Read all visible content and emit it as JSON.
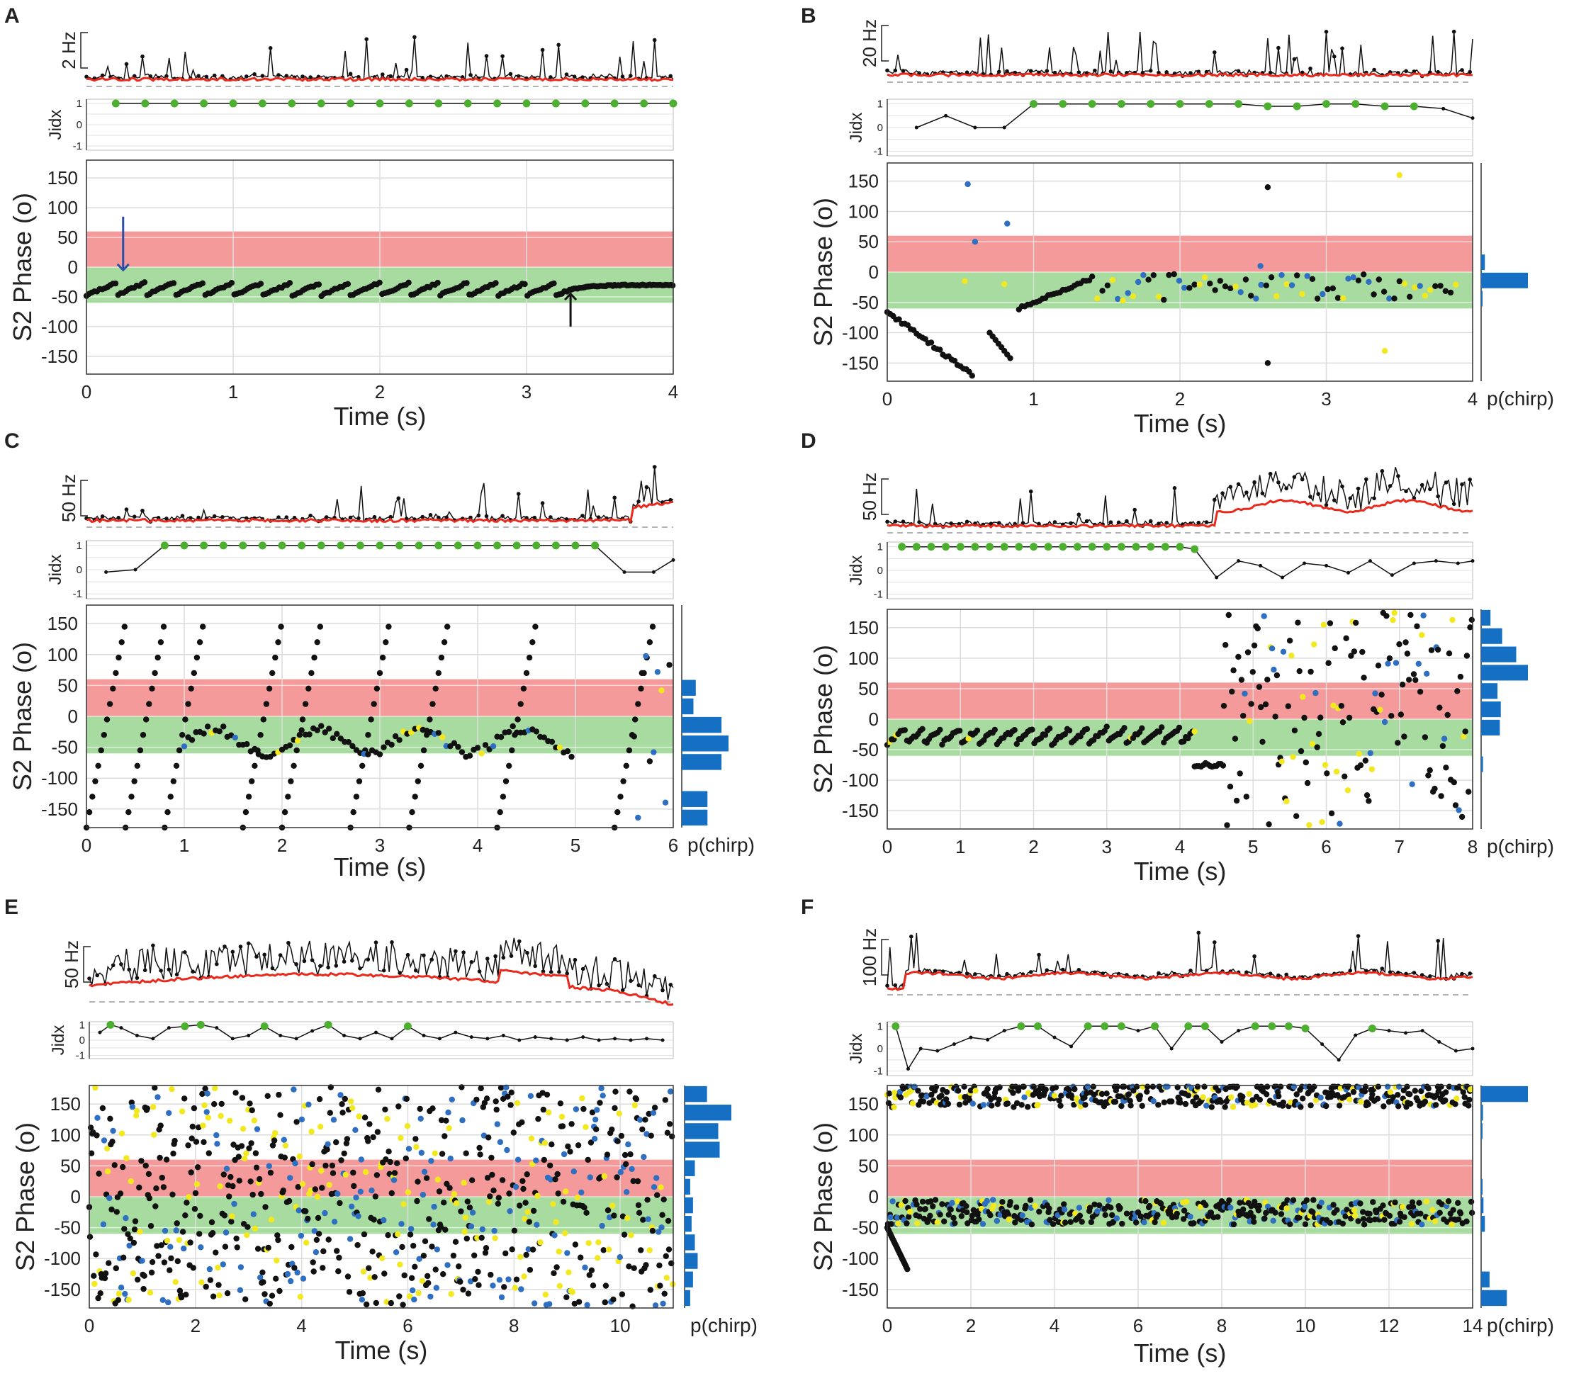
{
  "figure": {
    "phase_axis_label": "S2 Phase (o)",
    "time_axis_label": "Time (s)",
    "jidx_label": "Jidx",
    "jidx_ticks": [
      "1",
      "0",
      "-1"
    ],
    "hist_label": "p(chirp)",
    "phase_ticks": [
      "150",
      "100",
      "50",
      "0",
      "-50",
      "-100",
      "-150"
    ],
    "colors": {
      "rate_line": "#e8291c",
      "chirp_trace": "#111111",
      "high_jidx_dot": "#4caf2f",
      "in_phase_band": "#f59a9a",
      "out_phase_band": "#a8dba0",
      "blue_points": "#2f6fc2",
      "yellow_points": "#f2e81f",
      "histogram": "#1570c4",
      "blue_arrow": "#2d4fa5"
    }
  },
  "chart_data": [
    {
      "panel": "A",
      "type": "scatter",
      "title": "",
      "xlabel": "Time (s)",
      "ylabel": "S2 Phase (o)",
      "xlim": [
        0,
        4
      ],
      "ylim": [
        -180,
        180
      ],
      "xticks": [
        "0",
        "1",
        "2",
        "3",
        "4"
      ],
      "rate_scale_label": "2 Hz",
      "bands": [
        {
          "name": "red",
          "range": [
            0,
            60
          ]
        },
        {
          "name": "green",
          "range": [
            -60,
            0
          ]
        }
      ],
      "jidx": {
        "x": [
          0.2,
          0.4,
          0.6,
          0.8,
          1.0,
          1.2,
          1.4,
          1.6,
          1.8,
          2.0,
          2.2,
          2.4,
          2.6,
          2.8,
          3.0,
          3.2,
          3.4,
          3.6,
          3.8,
          4.0
        ],
        "y": [
          1,
          1,
          1,
          1,
          1,
          1,
          1,
          1,
          1,
          1,
          1,
          1,
          1,
          1,
          1,
          1,
          1,
          1,
          1,
          1
        ]
      },
      "phase_pattern": "sawtooth_locked",
      "phase_mean": -35,
      "arrows": [
        {
          "color": "blue",
          "time": 0.25,
          "pointing": "down"
        },
        {
          "color": "black",
          "time": 3.3,
          "pointing": "up"
        }
      ],
      "histogram": null
    },
    {
      "panel": "B",
      "type": "scatter",
      "title": "",
      "xlabel": "Time (s)",
      "ylabel": "S2 Phase (o)",
      "xlim": [
        0,
        4
      ],
      "ylim": [
        -180,
        180
      ],
      "xticks": [
        "0",
        "1",
        "2",
        "3",
        "4"
      ],
      "rate_scale_label": "20 Hz",
      "bands": [
        {
          "name": "red",
          "range": [
            0,
            60
          ]
        },
        {
          "name": "green",
          "range": [
            -60,
            0
          ]
        }
      ],
      "jidx": {
        "x": [
          0.2,
          0.4,
          0.6,
          0.8,
          1.0,
          1.2,
          1.4,
          1.6,
          1.8,
          2.0,
          2.2,
          2.4,
          2.6,
          2.8,
          3.0,
          3.2,
          3.4,
          3.6,
          3.8,
          4.0
        ],
        "y": [
          0.0,
          0.5,
          0.0,
          0.0,
          1,
          1,
          1,
          1,
          1,
          1,
          1,
          1,
          0.9,
          0.9,
          1,
          1,
          0.9,
          0.9,
          0.8,
          0.4
        ]
      },
      "phase_pattern": "mostly_locked",
      "phase_mean": -25,
      "histogram": {
        "bin_centers": [
          -165,
          -135,
          -105,
          -75,
          -45,
          -15,
          15,
          45,
          75,
          105,
          135,
          165
        ],
        "values": [
          0,
          0,
          0,
          0,
          0.02,
          1.0,
          0.08,
          0,
          0,
          0,
          0,
          0
        ]
      }
    },
    {
      "panel": "C",
      "type": "scatter",
      "title": "",
      "xlabel": "Time (s)",
      "ylabel": "S2 Phase (o)",
      "xlim": [
        0,
        6
      ],
      "ylim": [
        -180,
        180
      ],
      "xticks": [
        "0",
        "1",
        "2",
        "3",
        "4",
        "5",
        "6"
      ],
      "rate_scale_label": "50 Hz",
      "bands": [
        {
          "name": "red",
          "range": [
            0,
            60
          ]
        },
        {
          "name": "green",
          "range": [
            -60,
            0
          ]
        }
      ],
      "jidx": {
        "x": [
          0.2,
          0.5,
          0.8,
          1.0,
          1.2,
          1.4,
          1.6,
          1.8,
          2.0,
          2.2,
          2.4,
          2.6,
          2.8,
          3.0,
          3.2,
          3.4,
          3.6,
          3.8,
          4.0,
          4.2,
          4.4,
          4.6,
          4.8,
          5.0,
          5.2,
          5.5,
          5.8,
          6.0
        ],
        "y": [
          -0.1,
          0.0,
          1,
          1,
          1,
          1,
          1,
          1,
          1,
          1,
          1,
          1,
          1,
          1,
          1,
          1,
          1,
          1,
          1,
          1,
          1,
          1,
          1,
          1,
          1,
          -0.1,
          -0.1,
          0.4
        ]
      },
      "phase_pattern": "drifting_slips",
      "phase_mean": -40,
      "histogram": {
        "bin_centers": [
          -165,
          -135,
          -105,
          -75,
          -45,
          -15,
          15,
          45,
          75,
          105,
          135,
          165
        ],
        "values": [
          0.55,
          0.55,
          0,
          0.85,
          1.0,
          0.85,
          0.25,
          0.3,
          0,
          0,
          0,
          0
        ]
      }
    },
    {
      "panel": "D",
      "type": "scatter",
      "title": "",
      "xlabel": "Time (s)",
      "ylabel": "S2 Phase (o)",
      "xlim": [
        0,
        8
      ],
      "ylim": [
        -180,
        180
      ],
      "xticks": [
        "0",
        "1",
        "2",
        "3",
        "4",
        "5",
        "6",
        "7",
        "8"
      ],
      "rate_scale_label": "50 Hz",
      "bands": [
        {
          "name": "red",
          "range": [
            0,
            60
          ]
        },
        {
          "name": "green",
          "range": [
            -60,
            0
          ]
        }
      ],
      "jidx": {
        "x": [
          0.2,
          0.4,
          0.6,
          0.8,
          1.0,
          1.2,
          1.4,
          1.6,
          1.8,
          2.0,
          2.2,
          2.4,
          2.6,
          2.8,
          3.0,
          3.2,
          3.4,
          3.6,
          3.8,
          4.0,
          4.2,
          4.5,
          4.8,
          5.1,
          5.4,
          5.7,
          6.0,
          6.3,
          6.6,
          6.9,
          7.2,
          7.5,
          7.8,
          8.0
        ],
        "y": [
          1,
          1,
          1,
          1,
          1,
          1,
          1,
          1,
          1,
          1,
          1,
          1,
          1,
          1,
          1,
          1,
          1,
          1,
          1,
          1,
          0.9,
          -0.3,
          0.4,
          0.2,
          -0.3,
          0.3,
          0.2,
          -0.1,
          0.4,
          -0.2,
          0.3,
          0.4,
          0.3,
          0.4
        ]
      },
      "phase_pattern": "locked_then_scattered",
      "phase_mean": -30,
      "histogram": {
        "bin_centers": [
          -165,
          -135,
          -105,
          -75,
          -45,
          -15,
          15,
          45,
          75,
          105,
          135,
          165
        ],
        "values": [
          0,
          0,
          0,
          0.04,
          0,
          0.4,
          0.42,
          0.35,
          1.0,
          0.75,
          0.45,
          0.2
        ]
      }
    },
    {
      "panel": "E",
      "type": "scatter",
      "title": "",
      "xlabel": "Time (s)",
      "ylabel": "S2 Phase (o)",
      "xlim": [
        0,
        11
      ],
      "ylim": [
        -180,
        180
      ],
      "xticks": [
        "0",
        "2",
        "4",
        "6",
        "8",
        "10"
      ],
      "rate_scale_label": "50 Hz",
      "bands": [
        {
          "name": "red",
          "range": [
            0,
            60
          ]
        },
        {
          "name": "green",
          "range": [
            -60,
            0
          ]
        }
      ],
      "jidx": {
        "x": [
          0.2,
          0.4,
          0.6,
          0.9,
          1.2,
          1.5,
          1.8,
          2.1,
          2.4,
          2.7,
          3.0,
          3.3,
          3.6,
          3.9,
          4.2,
          4.5,
          4.8,
          5.1,
          5.4,
          5.7,
          6.0,
          6.3,
          6.6,
          6.9,
          7.2,
          7.5,
          7.8,
          8.1,
          8.4,
          8.7,
          9.0,
          9.3,
          9.6,
          9.9,
          10.2,
          10.5,
          10.8
        ],
        "y": [
          0.5,
          1,
          0.8,
          0.3,
          0.1,
          0.8,
          0.9,
          1,
          0.8,
          0.1,
          0.3,
          0.9,
          0.3,
          0.1,
          0.6,
          1,
          0.3,
          0.1,
          0.5,
          0.1,
          0.9,
          0.3,
          0.1,
          0.5,
          0.2,
          0.1,
          0.3,
          0.0,
          0.2,
          0.1,
          0.0,
          0.2,
          0.0,
          0.1,
          0.0,
          0.1,
          0.0
        ]
      },
      "phase_pattern": "uniform_scatter",
      "phase_mean": 0,
      "histogram": {
        "bin_centers": [
          -165,
          -135,
          -105,
          -75,
          -45,
          -15,
          15,
          45,
          75,
          105,
          135,
          165
        ],
        "values": [
          0.12,
          0.18,
          0.28,
          0.22,
          0.15,
          0.18,
          0.12,
          0.22,
          0.75,
          0.72,
          1.0,
          0.48
        ]
      }
    },
    {
      "panel": "F",
      "type": "scatter",
      "title": "",
      "xlabel": "Time (s)",
      "ylabel": "S2 Phase (o)",
      "xlim": [
        0,
        14
      ],
      "ylim": [
        -180,
        180
      ],
      "xticks": [
        "0",
        "2",
        "4",
        "6",
        "8",
        "10",
        "12",
        "14"
      ],
      "rate_scale_label": "100 Hz",
      "bands": [
        {
          "name": "red",
          "range": [
            0,
            60
          ]
        },
        {
          "name": "green",
          "range": [
            -60,
            0
          ]
        }
      ],
      "jidx": {
        "x": [
          0.2,
          0.5,
          0.8,
          1.2,
          1.6,
          2.0,
          2.4,
          2.8,
          3.2,
          3.6,
          4.0,
          4.4,
          4.8,
          5.2,
          5.6,
          6.0,
          6.4,
          6.8,
          7.2,
          7.6,
          8.0,
          8.4,
          8.8,
          9.2,
          9.6,
          10.0,
          10.4,
          10.8,
          11.2,
          11.6,
          12.0,
          12.4,
          12.8,
          13.2,
          13.6,
          14.0
        ],
        "y": [
          1,
          -0.9,
          0.0,
          -0.1,
          0.2,
          0.5,
          0.4,
          0.8,
          1,
          1,
          0.5,
          0.1,
          1,
          1,
          1,
          0.8,
          1,
          0.0,
          1,
          1,
          0.3,
          0.8,
          1,
          1,
          1,
          0.9,
          0.2,
          -0.5,
          0.6,
          0.9,
          0.8,
          0.7,
          0.8,
          0.3,
          -0.1,
          0.0
        ]
      },
      "phase_pattern": "bimodal_antiphase",
      "phase_mean": -20,
      "histogram": {
        "bin_centers": [
          -165,
          -135,
          -105,
          -75,
          -45,
          -15,
          15,
          45,
          75,
          105,
          135,
          165
        ],
        "values": [
          0.55,
          0.18,
          0,
          0,
          0.08,
          0.05,
          0.02,
          0,
          0,
          0.02,
          0.04,
          1.0
        ]
      }
    }
  ]
}
